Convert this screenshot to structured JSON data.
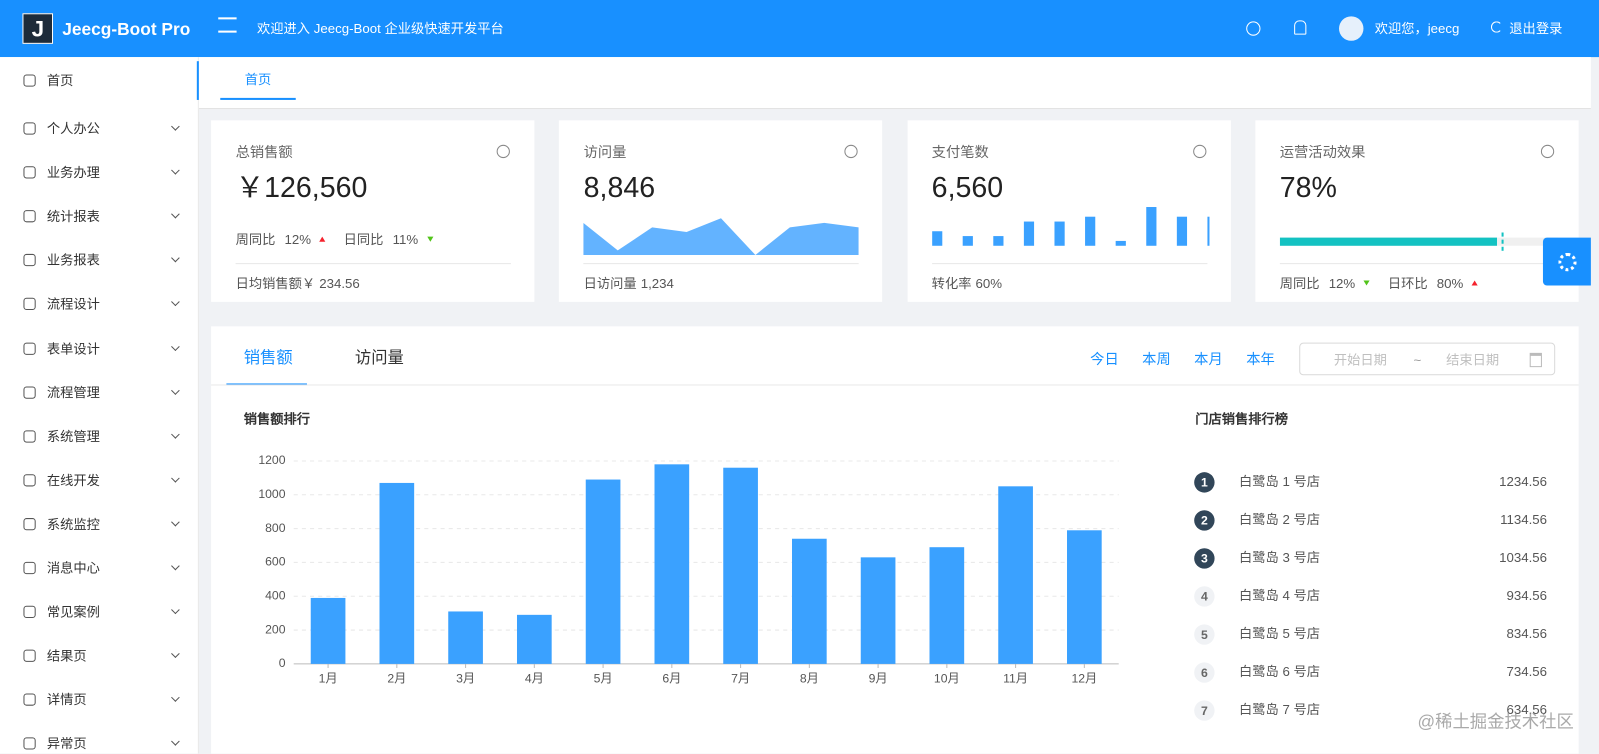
{
  "header": {
    "logo": "J",
    "title": "Jeecg-Boot Pro",
    "welcome": "欢迎进入 Jeecg-Boot 企业级快速开发平台",
    "user": "欢迎您，jeecg",
    "logout": "退出登录"
  },
  "menu": [
    "首页",
    "个人办公",
    "业务办理",
    "统计报表",
    "业务报表",
    "流程设计",
    "表单设计",
    "流程管理",
    "系统管理",
    "在线开发",
    "系统监控",
    "消息中心",
    "常见案例",
    "结果页",
    "详情页",
    "异常页"
  ],
  "tabs": [
    "首页"
  ],
  "cards": [
    {
      "title": "总销售额",
      "value": "￥126,560",
      "metrics": [
        {
          "label": "周同比",
          "value": "12%",
          "trend": "up"
        },
        {
          "label": "日同比",
          "value": "11%",
          "trend": "down"
        }
      ],
      "footer_label": "日均销售额￥",
      "footer_value": "234.56"
    },
    {
      "title": "访问量",
      "value": "8,846",
      "mini_area": [
        7,
        1,
        6,
        5,
        8,
        0,
        6,
        7,
        6
      ],
      "footer_label": "日访问量",
      "footer_value": "1,234"
    },
    {
      "title": "支付笔数",
      "value": "6,560",
      "mini_bars": [
        3,
        2,
        2,
        5,
        5,
        6,
        1,
        8,
        6,
        6
      ],
      "footer_label": "转化率",
      "footer_value": "60%"
    },
    {
      "title": "运营活动效果",
      "value": "78%",
      "progress": 78,
      "target": 80,
      "metrics": [
        {
          "label": "周同比",
          "value": "12%",
          "trend": "down"
        },
        {
          "label": "日环比",
          "value": "80%",
          "trend": "up"
        }
      ]
    }
  ],
  "panel": {
    "tabs": [
      "销售额",
      "访问量"
    ],
    "ranges": [
      "今日",
      "本周",
      "本月",
      "本年"
    ],
    "date_start": "开始日期",
    "date_sep": "~",
    "date_end": "结束日期"
  },
  "chart_data": {
    "type": "bar",
    "title": "销售额排行",
    "categories": [
      "1月",
      "2月",
      "3月",
      "4月",
      "5月",
      "6月",
      "7月",
      "8月",
      "9月",
      "10月",
      "11月",
      "12月"
    ],
    "values": [
      390,
      1070,
      310,
      290,
      1090,
      1180,
      1160,
      740,
      630,
      690,
      1050,
      790
    ],
    "color": "#3aa1ff",
    "ylim": [
      0,
      1200
    ],
    "yticks": [
      0,
      200,
      400,
      600,
      800,
      1000,
      1200
    ],
    "grid": true
  },
  "ranking": {
    "title": "门店销售排行榜",
    "items": [
      {
        "rank": "1",
        "name": "白鹭岛 1 号店",
        "total": "1234.56"
      },
      {
        "rank": "2",
        "name": "白鹭岛 2 号店",
        "total": "1134.56"
      },
      {
        "rank": "3",
        "name": "白鹭岛 3 号店",
        "total": "1034.56"
      },
      {
        "rank": "4",
        "name": "白鹭岛 4 号店",
        "total": "934.56"
      },
      {
        "rank": "5",
        "name": "白鹭岛 5 号店",
        "total": "834.56"
      },
      {
        "rank": "6",
        "name": "白鹭岛 6 号店",
        "total": "734.56"
      },
      {
        "rank": "7",
        "name": "白鹭岛 7 号店",
        "total": "634.56"
      }
    ]
  },
  "watermark": "@稀土掘金技术社区"
}
